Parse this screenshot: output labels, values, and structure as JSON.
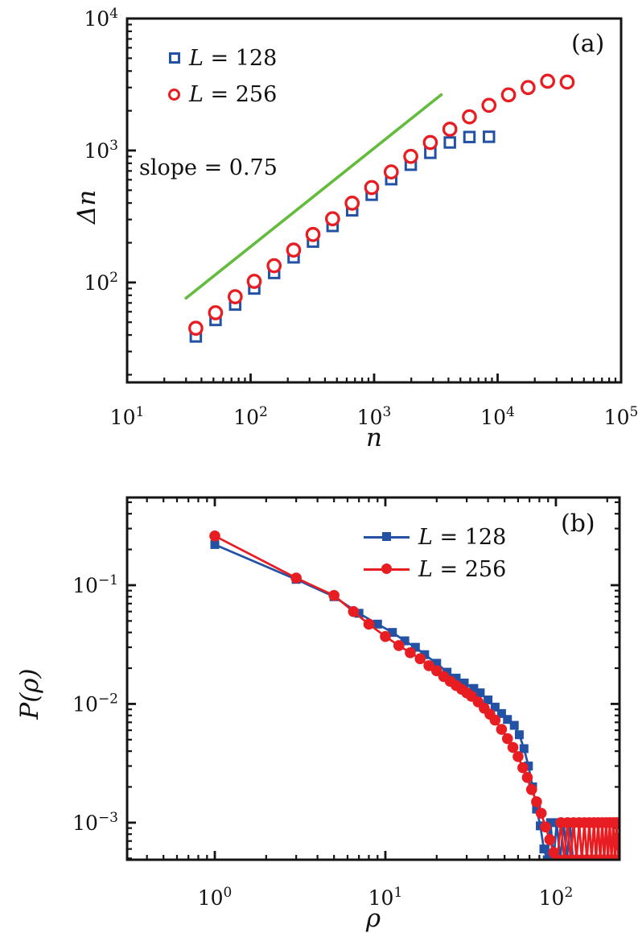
{
  "colors": {
    "blue": "#2352a4",
    "red": "#e81d22",
    "green": "#63bc3d",
    "axis": "#141414"
  },
  "chart_data": [
    {
      "tag": "(a)",
      "type": "scatter",
      "xscale": "log",
      "yscale": "log",
      "xlabel": "n",
      "ylabel": "Δn",
      "annotation": "slope = 0.75",
      "xlim": [
        10,
        100000
      ],
      "ylim": [
        17.5,
        10000
      ],
      "grid": false,
      "legend_position": "upper-left-inside",
      "xticks": {
        "values": [
          10,
          100,
          1000,
          10000,
          100000
        ],
        "labels": [
          "10^1",
          "10^2",
          "10^3",
          "10^4",
          "10^5"
        ]
      },
      "yticks": {
        "values": [
          100,
          1000,
          10000
        ],
        "labels": [
          "10^2",
          "10^3",
          "10^4"
        ]
      },
      "series": [
        {
          "name": "L = 128",
          "color": "blue",
          "marker": "square",
          "fillstyle": "open",
          "line": false,
          "x": [
            36,
            52,
            75,
            107,
            155,
            223,
            320,
            461,
            664,
            956,
            1376,
            1981,
            2852,
            4106,
            5912,
            8512
          ],
          "y": [
            39,
            52,
            68,
            90,
            118,
            155,
            204,
            268,
            352,
            462,
            606,
            780,
            960,
            1150,
            1265,
            1270
          ]
        },
        {
          "name": "L = 256",
          "color": "red",
          "marker": "circle",
          "fillstyle": "open",
          "line": false,
          "x": [
            36,
            52,
            75,
            107,
            155,
            223,
            320,
            461,
            664,
            956,
            1376,
            1981,
            2852,
            4106,
            5912,
            8512,
            12255,
            17646,
            25406,
            36580
          ],
          "y": [
            45,
            59,
            78,
            102,
            134,
            176,
            231,
            304,
            399,
            524,
            688,
            903,
            1150,
            1450,
            1800,
            2200,
            2640,
            3000,
            3350,
            3300
          ]
        },
        {
          "name": "slope = 0.75",
          "role": "guide",
          "color": "green",
          "marker": "none",
          "line": true,
          "x": [
            30,
            3500
          ],
          "y": [
            76,
            2650
          ]
        }
      ]
    },
    {
      "tag": "(b)",
      "type": "line",
      "xscale": "log",
      "yscale": "log",
      "xlabel": "ρ",
      "ylabel": "P(ρ)",
      "annotation": "",
      "xlim": [
        0.306,
        236
      ],
      "ylim": [
        0.000487,
        0.548
      ],
      "grid": false,
      "legend_position": "upper-right-inside",
      "xticks": {
        "values": [
          1,
          10,
          100
        ],
        "labels": [
          "10^0",
          "10^1",
          "10^2"
        ]
      },
      "yticks": {
        "values": [
          0.1,
          0.01,
          0.001
        ],
        "labels": [
          "10^-1",
          "10^-2",
          "10^-3"
        ]
      },
      "series": [
        {
          "name": "L = 128",
          "color": "blue",
          "marker": "square",
          "fillstyle": "filled",
          "line": true,
          "x": [
            1,
            3,
            5,
            7,
            9,
            11,
            13,
            15,
            17,
            20,
            23,
            26,
            29,
            33,
            36,
            40,
            44,
            48,
            52,
            57,
            61,
            65,
            69,
            73,
            77,
            81,
            85,
            89,
            93,
            97,
            101,
            106,
            111,
            116,
            121,
            126
          ],
          "y": [
            0.22,
            0.112,
            0.08,
            0.058,
            0.047,
            0.04,
            0.034,
            0.03,
            0.026,
            0.022,
            0.0185,
            0.0165,
            0.015,
            0.0135,
            0.0124,
            0.0108,
            0.0094,
            0.0083,
            0.0074,
            0.0066,
            0.0055,
            0.0042,
            0.003,
            0.002,
            0.0013,
            0.00094,
            0.0006,
            0.00045,
            0.001,
            0.00045,
            0.001,
            0.00045,
            0.001,
            0.00045,
            0.001,
            0.00045
          ]
        },
        {
          "name": "L = 256",
          "color": "red",
          "marker": "circle",
          "fillstyle": "filled",
          "line": true,
          "x": [
            1,
            3,
            5,
            6.5,
            8,
            10,
            12,
            14,
            16,
            18,
            20,
            22,
            24,
            26,
            28,
            30,
            32,
            35,
            38,
            41,
            44,
            48,
            52,
            56,
            60,
            64,
            68,
            72,
            77,
            82,
            87,
            92,
            97,
            102,
            107,
            112,
            117,
            122,
            127,
            132,
            137,
            142,
            147,
            152,
            157,
            162,
            167,
            172,
            177,
            182,
            187,
            192,
            197,
            202,
            207,
            212,
            217,
            222,
            227,
            232,
            237
          ],
          "y": [
            0.26,
            0.115,
            0.082,
            0.06,
            0.047,
            0.037,
            0.031,
            0.027,
            0.024,
            0.021,
            0.019,
            0.017,
            0.0155,
            0.0143,
            0.0133,
            0.0124,
            0.0116,
            0.0104,
            0.0092,
            0.0082,
            0.0073,
            0.0061,
            0.0051,
            0.0043,
            0.0036,
            0.0029,
            0.0024,
            0.0019,
            0.0015,
            0.0012,
            0.00092,
            0.00072,
            0.00056,
            0.00045,
            0.001,
            0.00045,
            0.001,
            0.00045,
            0.001,
            0.00045,
            0.001,
            0.00045,
            0.001,
            0.00045,
            0.001,
            0.00045,
            0.001,
            0.00045,
            0.001,
            0.00045,
            0.001,
            0.00045,
            0.001,
            0.00045,
            0.001,
            0.00045,
            0.001,
            0.00045,
            0.001,
            0.00045,
            0.001
          ]
        }
      ]
    }
  ]
}
